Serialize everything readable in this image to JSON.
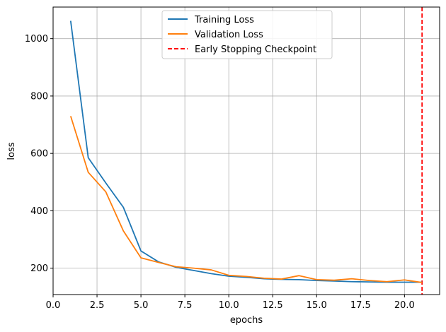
{
  "chart_data": {
    "type": "line",
    "xlabel": "epochs",
    "ylabel": "loss",
    "xlim": [
      0.0,
      22.0
    ],
    "ylim": [
      108,
      1110
    ],
    "x_ticks": [
      "0.0",
      "2.5",
      "5.0",
      "7.5",
      "10.0",
      "12.5",
      "15.0",
      "17.5",
      "20.0"
    ],
    "x_tick_values": [
      0,
      2.5,
      5,
      7.5,
      10,
      12.5,
      15,
      17.5,
      20
    ],
    "y_ticks": [
      "200",
      "400",
      "600",
      "800",
      "1000"
    ],
    "y_tick_values": [
      200,
      400,
      600,
      800,
      1000
    ],
    "grid": true,
    "legend_position": "upper-center",
    "series": [
      {
        "name": "Training Loss",
        "color": "#1f77b4",
        "x": [
          1,
          2,
          3,
          4,
          5,
          6,
          7,
          8,
          9,
          10,
          11,
          12,
          13,
          14,
          15,
          16,
          17,
          18,
          19,
          20,
          21
        ],
        "y": [
          1062,
          585,
          497,
          412,
          260,
          222,
          203,
          192,
          181,
          172,
          168,
          163,
          161,
          160,
          157,
          155,
          153,
          152,
          151,
          151,
          151
        ]
      },
      {
        "name": "Validation Loss",
        "color": "#ff7f0e",
        "x": [
          1,
          2,
          3,
          4,
          5,
          6,
          7,
          8,
          9,
          10,
          11,
          12,
          13,
          14,
          15,
          16,
          17,
          18,
          19,
          20,
          21
        ],
        "y": [
          730,
          534,
          466,
          330,
          236,
          220,
          205,
          200,
          194,
          175,
          171,
          165,
          162,
          174,
          160,
          158,
          163,
          157,
          153,
          159,
          150
        ]
      }
    ],
    "vlines": [
      {
        "name": "Early Stopping Checkpoint",
        "x": 21,
        "color": "#ff0000",
        "style": "dashed"
      }
    ]
  }
}
